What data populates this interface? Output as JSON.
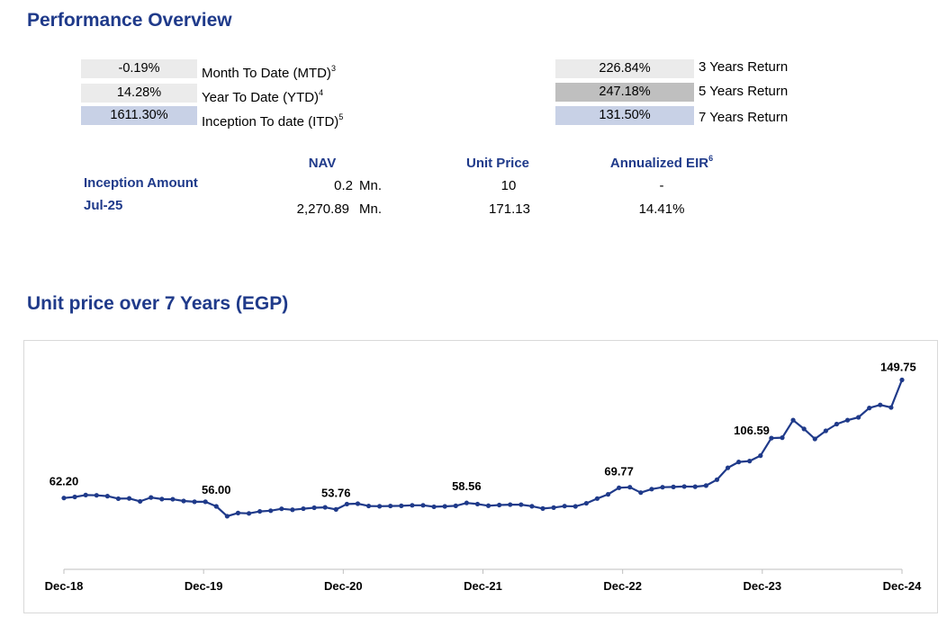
{
  "overview": {
    "title": "Performance Overview",
    "left_metrics": [
      {
        "value": "-0.19%",
        "label": "Month To Date (MTD)",
        "sup": "3",
        "bg": "#ebebeb"
      },
      {
        "value": "14.28%",
        "label": "Year To Date (YTD)",
        "sup": "4",
        "bg": "#ebebeb"
      },
      {
        "value": "1611.30%",
        "label": "Inception To date (ITD)",
        "sup": "5",
        "bg": "#c8d1e6"
      }
    ],
    "right_metrics": [
      {
        "value": "226.84%",
        "label": "3 Years Return",
        "bg": "#ebebeb"
      },
      {
        "value": "247.18%",
        "label": "5 Years Return",
        "bg": "#bfbfbf"
      },
      {
        "value": "131.50%",
        "label": "7 Years Return",
        "bg": "#c8d1e6"
      }
    ]
  },
  "table": {
    "headers": {
      "nav": "NAV",
      "unit_price": "Unit Price",
      "eir": "Annualized EIR",
      "eir_sup": "6"
    },
    "rows": [
      {
        "label": "Inception Amount",
        "nav": "0.2",
        "unit": "Mn.",
        "price": "10",
        "eir": "-"
      },
      {
        "label": "Jul-25",
        "nav": "2,270.89",
        "unit": "Mn.",
        "price": "171.13",
        "eir": "14.41%"
      }
    ]
  },
  "chart_title": "Unit price over 7 Years (EGP)",
  "colors": {
    "line": "#1f3a8a",
    "heading": "#1f3a8a"
  },
  "chart_data": {
    "type": "line",
    "x_tick_labels": [
      "Dec-18",
      "Dec-19",
      "Dec-20",
      "Dec-21",
      "Dec-22",
      "Dec-23",
      "Dec-24"
    ],
    "series": [
      {
        "values": [
          62.2,
          63.0,
          64.4,
          64.2,
          63.6,
          61.7,
          61.9,
          59.7,
          62.6,
          61.4,
          61.3,
          60.0,
          59.4,
          59.4,
          56.0,
          48.7,
          51.1,
          50.8,
          52.3,
          52.8,
          54.2,
          53.5,
          54.3,
          55.0,
          55.3,
          53.76,
          57.7,
          58.0,
          56.3,
          56.1,
          56.3,
          56.4,
          56.8,
          56.8,
          55.7,
          56.0,
          56.4,
          58.56,
          57.7,
          56.5,
          57.0,
          57.3,
          57.3,
          56.1,
          54.4,
          55.1,
          56.2,
          56.0,
          58.3,
          61.8,
          64.9,
          69.77,
          70.2,
          66.2,
          68.8,
          70.2,
          70.4,
          70.7,
          70.6,
          71.4,
          75.8,
          84.6,
          88.9,
          89.6,
          93.6,
          106.59,
          106.9,
          119.9,
          113.4,
          106.0,
          112.0,
          117.0,
          119.9,
          122.0,
          128.9,
          131.2,
          129.3,
          149.75
        ]
      }
    ],
    "data_labels": [
      {
        "index": 0,
        "text": "62.20"
      },
      {
        "index": 14,
        "text": "56.00"
      },
      {
        "index": 25,
        "text": "53.76"
      },
      {
        "index": 37,
        "text": "58.56"
      },
      {
        "index": 51,
        "text": "69.77"
      },
      {
        "index": 65,
        "text": "106.59"
      },
      {
        "index": 77,
        "text": "149.75"
      }
    ],
    "ylim": [
      30,
      160
    ],
    "grid": false,
    "legend": "none"
  }
}
